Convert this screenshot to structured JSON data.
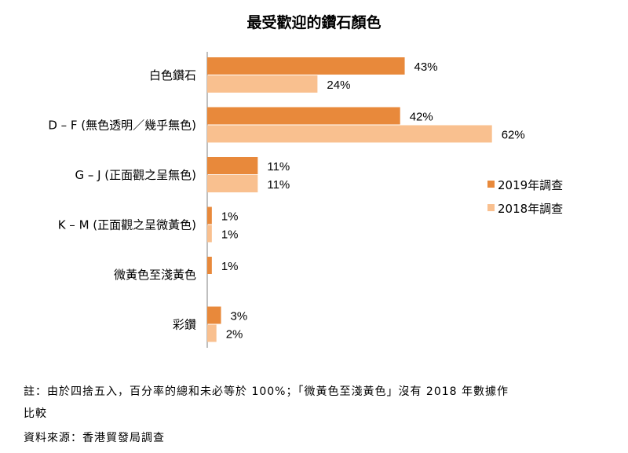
{
  "chart_data": {
    "type": "bar",
    "orientation": "horizontal",
    "title": "最受歡迎的鑽石顏色",
    "categories": [
      "白色鑽石",
      "D – F (無色透明／幾乎無色)",
      "G – J (正面觀之呈無色)",
      "K – M (正面觀之呈微黃色)",
      "微黃色至淺黃色",
      "彩鑽"
    ],
    "series": [
      {
        "name": "2019年調查",
        "color": "#E8893B",
        "values": [
          43,
          42,
          11,
          1,
          1,
          3
        ],
        "labels": [
          "43%",
          "42%",
          "11%",
          "1%",
          "1%",
          "3%"
        ]
      },
      {
        "name": "2018年調查",
        "color": "#F9C08F",
        "values": [
          24,
          62,
          11,
          1,
          null,
          2
        ],
        "labels": [
          "24%",
          "62%",
          "11%",
          "1%",
          "",
          "2%"
        ]
      }
    ],
    "xlim": [
      0,
      70
    ],
    "legend": "right"
  },
  "notes": {
    "line1": "註：由於四捨五入，百分率的總和未必等於 100%；「微黃色至淺黃色」沒有 2018 年數據作",
    "line2": "比較",
    "source": "資料來源：香港貿發局調查"
  }
}
